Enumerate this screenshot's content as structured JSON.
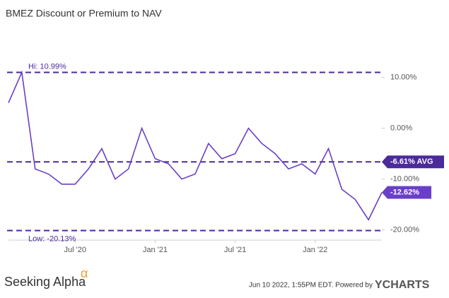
{
  "chart_data": {
    "type": "line",
    "title": "BMEZ Discount or Premium to NAV",
    "x": [
      "2020-02",
      "2020-03",
      "2020-04",
      "2020-05",
      "2020-06",
      "2020-07",
      "2020-08",
      "2020-09",
      "2020-10",
      "2020-11",
      "2020-12",
      "2021-01",
      "2021-02",
      "2021-03",
      "2021-04",
      "2021-05",
      "2021-06",
      "2021-07",
      "2021-08",
      "2021-09",
      "2021-10",
      "2021-11",
      "2021-12",
      "2022-01",
      "2022-02",
      "2022-03",
      "2022-04",
      "2022-05",
      "2022-06"
    ],
    "series": [
      {
        "name": "BMEZ Discount or Premium to NAV",
        "color": "#6a3fc8",
        "values": [
          5,
          10.99,
          -8,
          -9,
          -11,
          -11,
          -8,
          -4,
          -10,
          -8,
          0,
          -6,
          -7,
          -10,
          -9,
          -3,
          -6,
          -5,
          0,
          -3,
          -5,
          -8,
          -7,
          -9,
          -4,
          -12,
          -14,
          -18,
          -12.62
        ],
        "value_labels": [
          null,
          null,
          null,
          null,
          null,
          null,
          null,
          null,
          null,
          null,
          null,
          null,
          null,
          null,
          null,
          null,
          null,
          null,
          null,
          null,
          null,
          null,
          null,
          null,
          null,
          null,
          null,
          null,
          "-12.62%"
        ]
      }
    ],
    "xlim": [
      "2020-02",
      "2022-06"
    ],
    "xticks": [
      {
        "value": "2020-07",
        "label": "Jul '20"
      },
      {
        "value": "2021-01",
        "label": "Jan '21"
      },
      {
        "value": "2021-07",
        "label": "Jul '21"
      },
      {
        "value": "2022-01",
        "label": "Jan '22"
      }
    ],
    "ylim": [
      -22,
      13
    ],
    "yticks": [
      {
        "value": 10,
        "label": "10.00%"
      },
      {
        "value": 0,
        "label": "0.00%"
      },
      {
        "value": -10,
        "label": "-10.00%"
      },
      {
        "value": -20,
        "label": "-20.00%"
      }
    ],
    "reference_lines": [
      {
        "value": 10.99,
        "label": "Hi: 10.99%"
      },
      {
        "value": -6.61,
        "label": "-6.61% AVG"
      },
      {
        "value": -20.13,
        "label": "Low: -20.13%"
      }
    ],
    "footer": {
      "brand": "Seeking Alpha",
      "brand_mark": "α",
      "timestamp": "Jun 10 2022, 1:55PM EDT.  Powered by",
      "provider": "YCHARTS"
    }
  }
}
